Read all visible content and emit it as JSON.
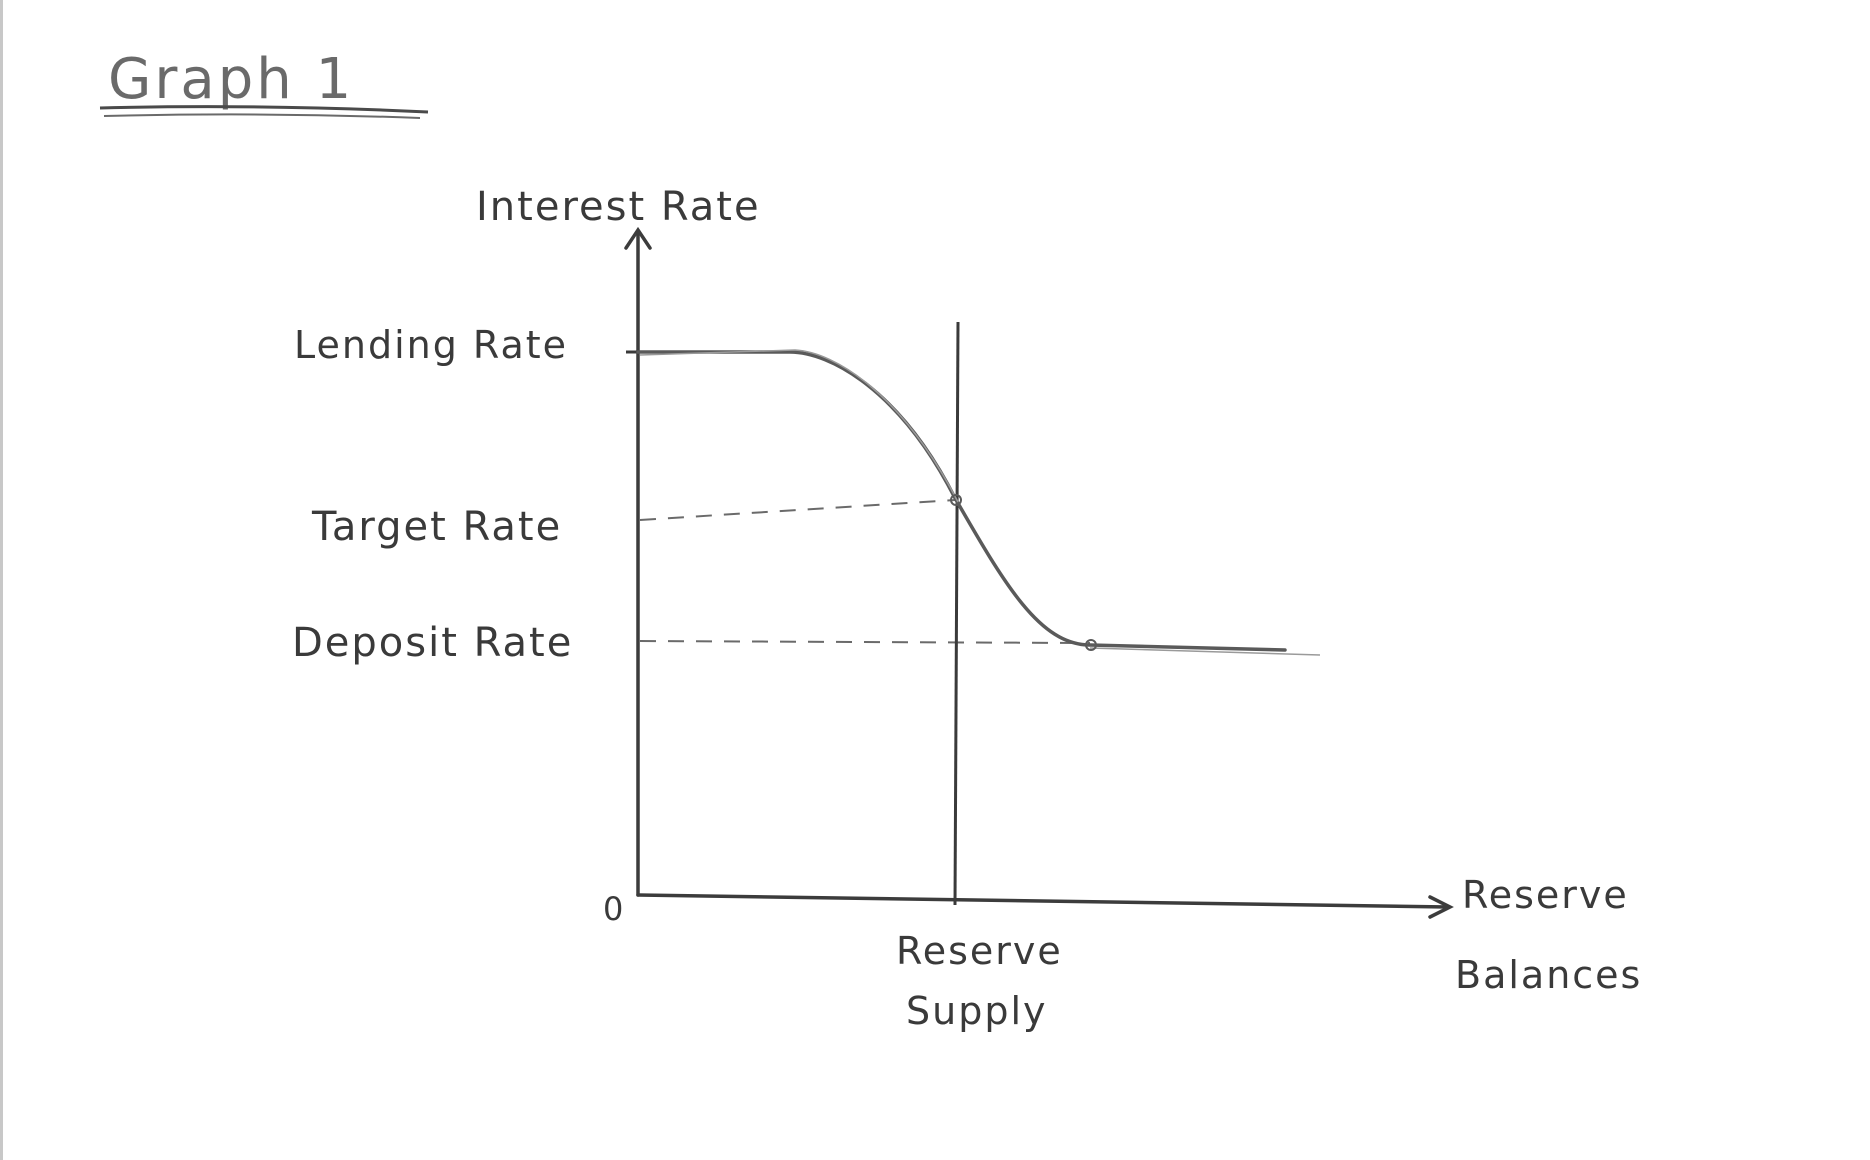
{
  "title": "Graph 1",
  "axes": {
    "y_label": "Interest Rate",
    "x_label_line1": "Reserve",
    "x_label_line2": "Balances",
    "origin": "0"
  },
  "rate_labels": {
    "lending": "Lending Rate",
    "target": "Target Rate",
    "deposit": "Deposit Rate"
  },
  "supply_label_line1": "Reserve",
  "supply_label_line2": "Supply",
  "colors": {
    "ink": "#3a3a3a",
    "pencil": "#5a5a5a",
    "paper": "#ffffff"
  }
}
